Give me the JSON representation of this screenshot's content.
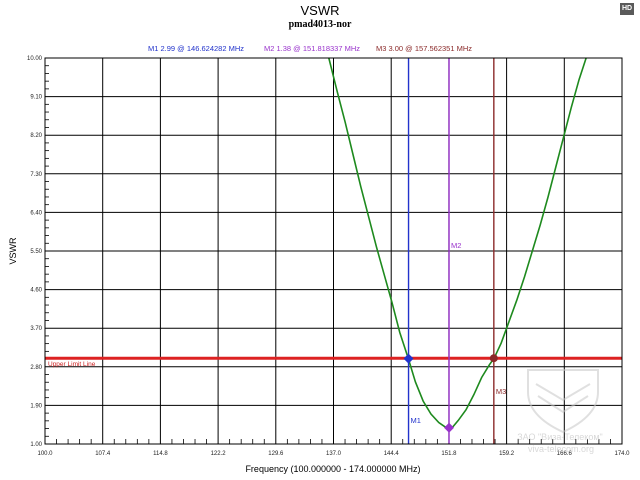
{
  "badge": "HD",
  "chart_data": {
    "type": "line",
    "title": "VSWR",
    "subtitle": "pmad4013-nor",
    "xlabel": "Frequency (100.000000 - 174.000000 MHz)",
    "ylabel": "VSWR",
    "xlim": [
      100.0,
      174.0
    ],
    "ylim": [
      1.0,
      10.0
    ],
    "x_ticks": [
      "100.0",
      "107.4",
      "114.8",
      "122.2",
      "129.6",
      "137.0",
      "144.4",
      "151.8",
      "159.2",
      "166.6",
      "174.0"
    ],
    "y_ticks": [
      "1.00",
      "1.90",
      "2.80",
      "3.70",
      "4.60",
      "5.50",
      "6.40",
      "7.30",
      "8.20",
      "9.10",
      "10.00"
    ],
    "grid": true,
    "series": [
      {
        "color": "#1e8a1e",
        "x": [
          136.4,
          137.5,
          138.5,
          139.5,
          140.5,
          141.5,
          142.5,
          143.5,
          144.5,
          145.5,
          146.6,
          147.5,
          148.5,
          149.5,
          150.5,
          151.3,
          151.8,
          152.3,
          153.0,
          154.0,
          155.0,
          156.0,
          157.0,
          157.6,
          158.5,
          159.5,
          160.5,
          161.5,
          162.5,
          163.5,
          164.5,
          165.5,
          166.5,
          167.5,
          168.5,
          169.4
        ],
        "y": [
          10.0,
          9.2,
          8.5,
          7.75,
          7.0,
          6.3,
          5.6,
          4.95,
          4.3,
          3.6,
          2.99,
          2.45,
          2.0,
          1.7,
          1.5,
          1.4,
          1.38,
          1.4,
          1.55,
          1.8,
          2.15,
          2.55,
          2.85,
          3.0,
          3.35,
          3.85,
          4.35,
          4.9,
          5.5,
          6.1,
          6.75,
          7.45,
          8.15,
          8.85,
          9.5,
          10.0
        ]
      }
    ],
    "reference_line": {
      "label": "Upper Limit Line",
      "y": 3.0,
      "color": "#dd2222"
    },
    "markers_readout": [
      {
        "text": "M1   2.99 @ 146.624282 MHz",
        "color": "#2233cc"
      },
      {
        "text": "M2   1.38 @ 151.818337 MHz",
        "color": "#9933cc"
      },
      {
        "text": "M3   3.00 @ 157.562351 MHz",
        "color": "#8b2a2a"
      }
    ],
    "markers": [
      {
        "name": "M1",
        "x": 146.624282,
        "y": 2.99,
        "color": "#2233cc"
      },
      {
        "name": "M2",
        "x": 151.818337,
        "y": 1.38,
        "color": "#9933cc"
      },
      {
        "name": "M3",
        "x": 157.562351,
        "y": 3.0,
        "color": "#8b2a2a"
      }
    ]
  },
  "watermark": {
    "line1": "ЗАО \"Виза-Телеком\"",
    "line2": "viva-telecom.org"
  }
}
